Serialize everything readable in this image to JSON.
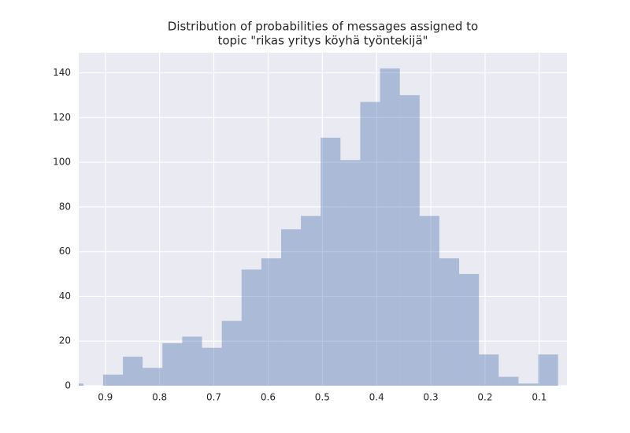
{
  "chart_data": {
    "type": "histogram",
    "title": [
      "Distribution of probabilities of messages assigned to",
      "topic \"rikas yritys köyhä työntekijä\""
    ],
    "bins": [
      0.0655,
      0.102,
      0.1384,
      0.1749,
      0.2113,
      0.2478,
      0.2843,
      0.3207,
      0.3572,
      0.3936,
      0.4301,
      0.4666,
      0.503,
      0.5395,
      0.5759,
      0.6124,
      0.6489,
      0.6853,
      0.7218,
      0.7582,
      0.7947,
      0.8312,
      0.8676,
      0.9041,
      0.9405,
      0.977
    ],
    "values": [
      14,
      1,
      4,
      14,
      50,
      57,
      76,
      130,
      142,
      127,
      101,
      111,
      76,
      70,
      57,
      52,
      29,
      17,
      22,
      19,
      8,
      13,
      5,
      0,
      1
    ],
    "color": "#4c72b0",
    "opacity": 0.4,
    "xlim": [
      0.949,
      0.049
    ],
    "xticks": [
      0.9,
      0.8,
      0.7,
      0.6,
      0.5,
      0.4,
      0.3,
      0.2,
      0.1
    ],
    "ylim": [
      0,
      149
    ],
    "yticks": [
      0,
      20,
      40,
      60,
      80,
      100,
      120,
      140
    ],
    "grid": true
  }
}
